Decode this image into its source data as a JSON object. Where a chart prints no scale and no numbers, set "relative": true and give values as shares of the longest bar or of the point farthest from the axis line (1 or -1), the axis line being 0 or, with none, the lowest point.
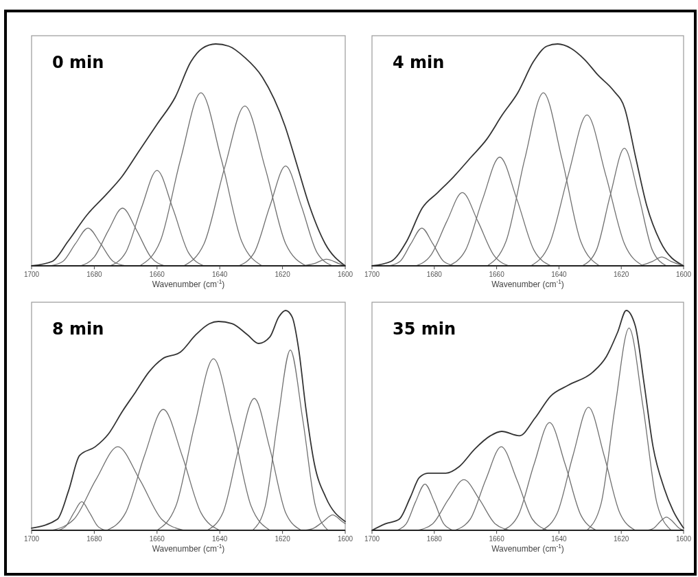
{
  "chart_data": [
    {
      "type": "line",
      "title": "0 min",
      "xlabel": "Wavenumber (cm$^{-1}$)",
      "relative": true,
      "xlim": [
        1700,
        1600
      ],
      "xticks": [
        1700,
        1680,
        1660,
        1640,
        1620,
        1600
      ],
      "series": [
        {
          "color": "#333333",
          "x": [
            1700,
            1693.4,
            1688.4,
            1682.3,
            1676.3,
            1671.3,
            1665.6,
            1659.9,
            1654.2,
            1649.2,
            1645.6,
            1641.3,
            1637.1,
            1632.1,
            1626.4,
            1619.2,
            1615.7,
            1611.4,
            1606.4,
            1600
          ],
          "values": [
            0,
            0.02,
            0.11,
            0.23,
            0.32,
            0.4,
            0.52,
            0.64,
            0.76,
            0.92,
            0.98,
            1,
            0.99,
            0.94,
            0.85,
            0.63,
            0.47,
            0.27,
            0.1,
            0
          ]
        },
        {
          "color": "#707070",
          "x": [
            1694,
            1690,
            1686,
            1682,
            1678,
            1674,
            1670
          ],
          "values": [
            0,
            0.02,
            0.1,
            0.17,
            0.1,
            0.02,
            0
          ]
        },
        {
          "color": "#707070",
          "x": [
            1684.5,
            1680,
            1675.5,
            1671,
            1666.5,
            1662,
            1657.5
          ],
          "values": [
            0,
            0.04,
            0.16,
            0.26,
            0.16,
            0.04,
            0
          ]
        },
        {
          "color": "#707070",
          "x": [
            1675,
            1670,
            1665,
            1660,
            1655,
            1650,
            1645
          ],
          "values": [
            0,
            0.06,
            0.26,
            0.43,
            0.26,
            0.06,
            0
          ]
        },
        {
          "color": "#707070",
          "x": [
            1665.5,
            1659,
            1652.5,
            1646,
            1639.5,
            1633,
            1626.5
          ],
          "values": [
            0,
            0.11,
            0.48,
            0.78,
            0.48,
            0.11,
            0
          ]
        },
        {
          "color": "#707070",
          "x": [
            1651.5,
            1645,
            1638.5,
            1632,
            1625.5,
            1619,
            1612.5
          ],
          "values": [
            0,
            0.1,
            0.44,
            0.72,
            0.44,
            0.1,
            0
          ]
        },
        {
          "color": "#707070",
          "x": [
            1634,
            1629,
            1624,
            1619,
            1614,
            1609,
            1604
          ],
          "values": [
            0,
            0.06,
            0.27,
            0.45,
            0.27,
            0.06,
            0
          ]
        },
        {
          "color": "#707070",
          "x": [
            1614,
            1610,
            1606,
            1602,
            1600
          ],
          "values": [
            0,
            0.01,
            0.03,
            0.01,
            0
          ]
        }
      ]
    },
    {
      "type": "line",
      "title": "4 min",
      "xlabel": "Wavenumber (cm$^{-1}$)",
      "relative": true,
      "xlim": [
        1700,
        1600
      ],
      "xticks": [
        1700,
        1680,
        1660,
        1640,
        1620,
        1600
      ],
      "series": [
        {
          "color": "#333333",
          "x": [
            1700,
            1693.9,
            1688.9,
            1683.9,
            1678.9,
            1673.9,
            1668.2,
            1663.2,
            1658.2,
            1653.2,
            1648.2,
            1643.9,
            1640.4,
            1636.1,
            1631.8,
            1627.5,
            1622.5,
            1618.9,
            1615.4,
            1611.8,
            1607.5,
            1600
          ],
          "values": [
            0,
            0.02,
            0.11,
            0.26,
            0.33,
            0.4,
            0.49,
            0.57,
            0.68,
            0.78,
            0.92,
            0.99,
            1,
            0.98,
            0.93,
            0.86,
            0.79,
            0.71,
            0.49,
            0.27,
            0.11,
            0
          ]
        },
        {
          "color": "#707070",
          "x": [
            1694.5,
            1691,
            1687.5,
            1684,
            1680.5,
            1677,
            1673.5
          ],
          "values": [
            0,
            0.02,
            0.1,
            0.17,
            0.1,
            0.02,
            0
          ]
        },
        {
          "color": "#707070",
          "x": [
            1686,
            1681,
            1676,
            1671,
            1666,
            1661,
            1656
          ],
          "values": [
            0,
            0.05,
            0.2,
            0.33,
            0.2,
            0.05,
            0
          ]
        },
        {
          "color": "#707070",
          "x": [
            1675.5,
            1670,
            1664.5,
            1659,
            1653.5,
            1648,
            1642.5
          ],
          "values": [
            0,
            0.07,
            0.3,
            0.49,
            0.3,
            0.07,
            0
          ]
        },
        {
          "color": "#707070",
          "x": [
            1663,
            1657,
            1651,
            1645,
            1639,
            1633,
            1627
          ],
          "values": [
            0,
            0.11,
            0.48,
            0.78,
            0.48,
            0.11,
            0
          ]
        },
        {
          "color": "#707070",
          "x": [
            1649,
            1643,
            1637,
            1631,
            1625,
            1619,
            1613
          ],
          "values": [
            0,
            0.1,
            0.41,
            0.68,
            0.41,
            0.1,
            0
          ]
        },
        {
          "color": "#707070",
          "x": [
            1632.5,
            1628,
            1623.5,
            1619,
            1614.5,
            1610,
            1605.5
          ],
          "values": [
            0,
            0.07,
            0.32,
            0.53,
            0.32,
            0.07,
            0
          ]
        },
        {
          "color": "#707070",
          "x": [
            1614,
            1610,
            1607,
            1604,
            1600
          ],
          "values": [
            0,
            0.02,
            0.04,
            0.02,
            0
          ]
        }
      ]
    },
    {
      "type": "line",
      "title": "8 min",
      "xlabel": "Wavenumber (cm$^{-1}$)",
      "relative": true,
      "xlim": [
        1700,
        1600
      ],
      "xticks": [
        1700,
        1680,
        1660,
        1640,
        1620,
        1600
      ],
      "series": [
        {
          "color": "#333333",
          "x": [
            1700,
            1691.8,
            1688.2,
            1684.7,
            1679.7,
            1675.4,
            1671.1,
            1666.8,
            1662.6,
            1658.3,
            1652.6,
            1647.6,
            1643.3,
            1640.4,
            1636.1,
            1631.2,
            1627.6,
            1624,
            1621.2,
            1619,
            1616.9,
            1614.8,
            1612.6,
            1609.8,
            1606.2,
            1600
          ],
          "values": [
            0.01,
            0.05,
            0.18,
            0.34,
            0.38,
            0.44,
            0.54,
            0.63,
            0.72,
            0.78,
            0.81,
            0.89,
            0.94,
            0.95,
            0.94,
            0.89,
            0.85,
            0.88,
            0.97,
            1,
            0.97,
            0.82,
            0.56,
            0.3,
            0.15,
            0.04
          ]
        },
        {
          "color": "#707070",
          "x": [
            1691.5,
            1689,
            1686.5,
            1684,
            1681.5,
            1679,
            1676.5
          ],
          "values": [
            0,
            0.02,
            0.08,
            0.13,
            0.08,
            0.02,
            0
          ]
        },
        {
          "color": "#707070",
          "x": [
            1693.5,
            1686.5,
            1679.5,
            1672.5,
            1665.5,
            1658.5,
            1651.5
          ],
          "values": [
            0,
            0.05,
            0.23,
            0.38,
            0.23,
            0.05,
            0
          ]
        },
        {
          "color": "#707070",
          "x": [
            1676,
            1670,
            1664,
            1658,
            1652,
            1646,
            1640
          ],
          "values": [
            0,
            0.08,
            0.34,
            0.55,
            0.34,
            0.08,
            0
          ]
        },
        {
          "color": "#707070",
          "x": [
            1660,
            1654,
            1648,
            1642,
            1636,
            1630,
            1624
          ],
          "values": [
            0,
            0.11,
            0.48,
            0.78,
            0.48,
            0.11,
            0
          ]
        },
        {
          "color": "#707070",
          "x": [
            1644,
            1639,
            1634,
            1629,
            1624,
            1619,
            1614
          ],
          "values": [
            0,
            0.08,
            0.37,
            0.6,
            0.37,
            0.08,
            0
          ]
        },
        {
          "color": "#707070",
          "x": [
            1629.5,
            1625.5,
            1621.5,
            1617.5,
            1613.5,
            1609.5,
            1605.5
          ],
          "values": [
            0,
            0.11,
            0.5,
            0.82,
            0.5,
            0.11,
            0
          ]
        },
        {
          "color": "#707070",
          "x": [
            1613,
            1610,
            1607,
            1604,
            1601,
            1600
          ],
          "values": [
            0,
            0.01,
            0.04,
            0.07,
            0.04,
            0.03
          ]
        }
      ]
    },
    {
      "type": "line",
      "title": "35 min",
      "xlabel": "Wavenumber (cm$^{-1}$)",
      "relative": true,
      "xlim": [
        1700,
        1600
      ],
      "xticks": [
        1700,
        1680,
        1660,
        1640,
        1620,
        1600
      ],
      "series": [
        {
          "color": "#333333",
          "x": [
            1700,
            1695.6,
            1691.3,
            1687.7,
            1684.8,
            1682,
            1676.3,
            1672,
            1667,
            1662,
            1658.4,
            1652.7,
            1647.7,
            1642.7,
            1637,
            1629.1,
            1624.8,
            1621.2,
            1618.4,
            1615.5,
            1612.7,
            1609.8,
            1606.2,
            1603.4,
            1600
          ],
          "values": [
            0,
            0.03,
            0.05,
            0.15,
            0.24,
            0.26,
            0.26,
            0.29,
            0.37,
            0.43,
            0.45,
            0.43,
            0.51,
            0.61,
            0.66,
            0.72,
            0.79,
            0.9,
            1,
            0.93,
            0.67,
            0.38,
            0.19,
            0.09,
            0.01
          ]
        },
        {
          "color": "#707070",
          "x": [
            1692,
            1689,
            1686,
            1683,
            1680,
            1677,
            1674
          ],
          "values": [
            0,
            0.03,
            0.13,
            0.21,
            0.13,
            0.03,
            0
          ]
        },
        {
          "color": "#707070",
          "x": [
            1685.5,
            1680.5,
            1675.5,
            1670.5,
            1665.5,
            1660.5,
            1655.5
          ],
          "values": [
            0,
            0.03,
            0.14,
            0.23,
            0.14,
            0.03,
            0
          ]
        },
        {
          "color": "#707070",
          "x": [
            1673.5,
            1668.5,
            1663.5,
            1658.5,
            1653.5,
            1648.5,
            1643.5
          ],
          "values": [
            0,
            0.05,
            0.23,
            0.38,
            0.23,
            0.05,
            0
          ]
        },
        {
          "color": "#707070",
          "x": [
            1658,
            1653,
            1648,
            1643,
            1638,
            1633,
            1628
          ],
          "values": [
            0,
            0.07,
            0.3,
            0.49,
            0.3,
            0.07,
            0
          ]
        },
        {
          "color": "#707070",
          "x": [
            1645.5,
            1640.5,
            1635.5,
            1630.5,
            1625.5,
            1620.5,
            1615.5
          ],
          "values": [
            0,
            0.08,
            0.34,
            0.56,
            0.34,
            0.08,
            0
          ]
        },
        {
          "color": "#707070",
          "x": [
            1631,
            1626.5,
            1622,
            1617.5,
            1613,
            1608.5,
            1604
          ],
          "values": [
            0,
            0.12,
            0.56,
            0.92,
            0.56,
            0.12,
            0
          ]
        },
        {
          "color": "#707070",
          "x": [
            1611.5,
            1609.5,
            1607.5,
            1605.5,
            1603.5,
            1601.5,
            1600
          ],
          "values": [
            0,
            0.01,
            0.04,
            0.06,
            0.04,
            0.01,
            0
          ]
        }
      ]
    }
  ]
}
